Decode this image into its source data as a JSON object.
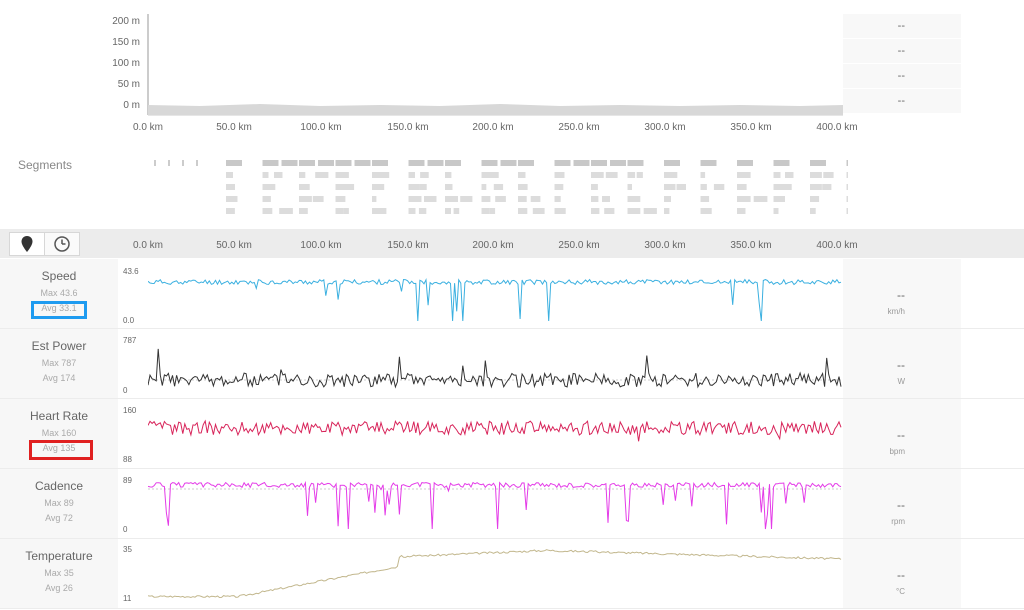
{
  "elevation": {
    "y_ticks": [
      "200 m",
      "150 m",
      "100 m",
      "50 m",
      "0 m"
    ],
    "x_ticks": [
      "0.0 km",
      "50.0 km",
      "100.0 km",
      "150.0 km",
      "200.0 km",
      "250.0 km",
      "300.0 km",
      "350.0 km",
      "400.0 km"
    ],
    "side_values": [
      "--",
      "--",
      "--",
      "--"
    ]
  },
  "segments": {
    "title": "Segments"
  },
  "toolbar": {
    "distance_icon": "map-pin-icon",
    "time_icon": "clock-icon",
    "x_ticks": [
      "0.0 km",
      "50.0 km",
      "100.0 km",
      "150.0 km",
      "200.0 km",
      "250.0 km",
      "300.0 km",
      "350.0 km",
      "400.0 km"
    ]
  },
  "metrics": [
    {
      "id": "speed",
      "name": "Speed",
      "max": "Max 43.6",
      "avg": "Avg 33.1",
      "ytop": "43.6",
      "ybottom": "0.0",
      "value": "--",
      "unit": "km/h",
      "color": "#3bb0e0"
    },
    {
      "id": "power",
      "name": "Est Power",
      "max": "Max 787",
      "avg": "Avg 174",
      "ytop": "787",
      "ybottom": "0",
      "value": "--",
      "unit": "W",
      "color": "#333333"
    },
    {
      "id": "heartrate",
      "name": "Heart Rate",
      "max": "Max 160",
      "avg": "Avg 135",
      "ytop": "160",
      "ybottom": "88",
      "value": "--",
      "unit": "bpm",
      "color": "#d8245a"
    },
    {
      "id": "cadence",
      "name": "Cadence",
      "max": "Max 89",
      "avg": "Avg 72",
      "ytop": "89",
      "ybottom": "0",
      "value": "--",
      "unit": "rpm",
      "color": "#e43ce8"
    },
    {
      "id": "temperature",
      "name": "Temperature",
      "max": "Max 35",
      "avg": "Avg 26",
      "ytop": "35",
      "ybottom": "11",
      "value": "--",
      "unit": "°C",
      "color": "#c2b78d"
    }
  ],
  "highlights": {
    "speed_avg_box": "#1e9bf0",
    "heartrate_avg_box": "#e02020"
  }
}
